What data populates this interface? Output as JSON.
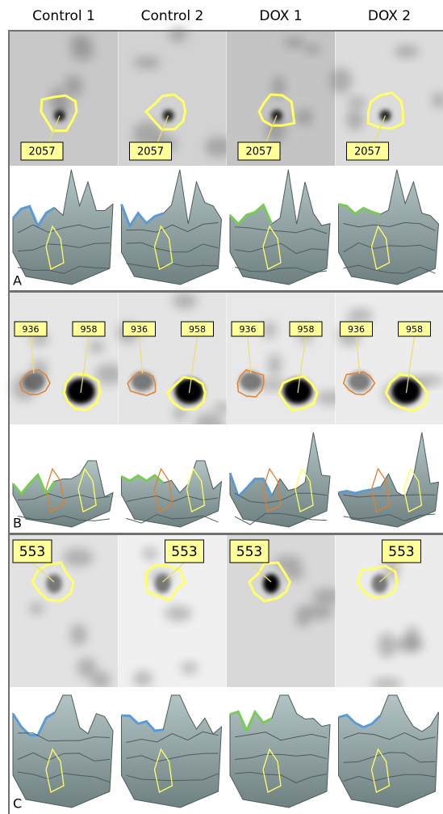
{
  "columns": [
    "Control 1",
    "Control 2",
    "DOX 1",
    "DOX 2"
  ],
  "panels": [
    {
      "label": "A",
      "spots": [
        [
          "2057"
        ],
        [
          "2057"
        ],
        [
          "2057"
        ],
        [
          "2057"
        ]
      ]
    },
    {
      "label": "B",
      "spots": [
        [
          "936",
          "958"
        ],
        [
          "936",
          "958"
        ],
        [
          "936",
          "958"
        ],
        [
          "936",
          "958"
        ]
      ]
    },
    {
      "label": "C",
      "spots": [
        [
          "553"
        ],
        [
          "553"
        ],
        [
          "553"
        ],
        [
          "553"
        ]
      ]
    }
  ]
}
